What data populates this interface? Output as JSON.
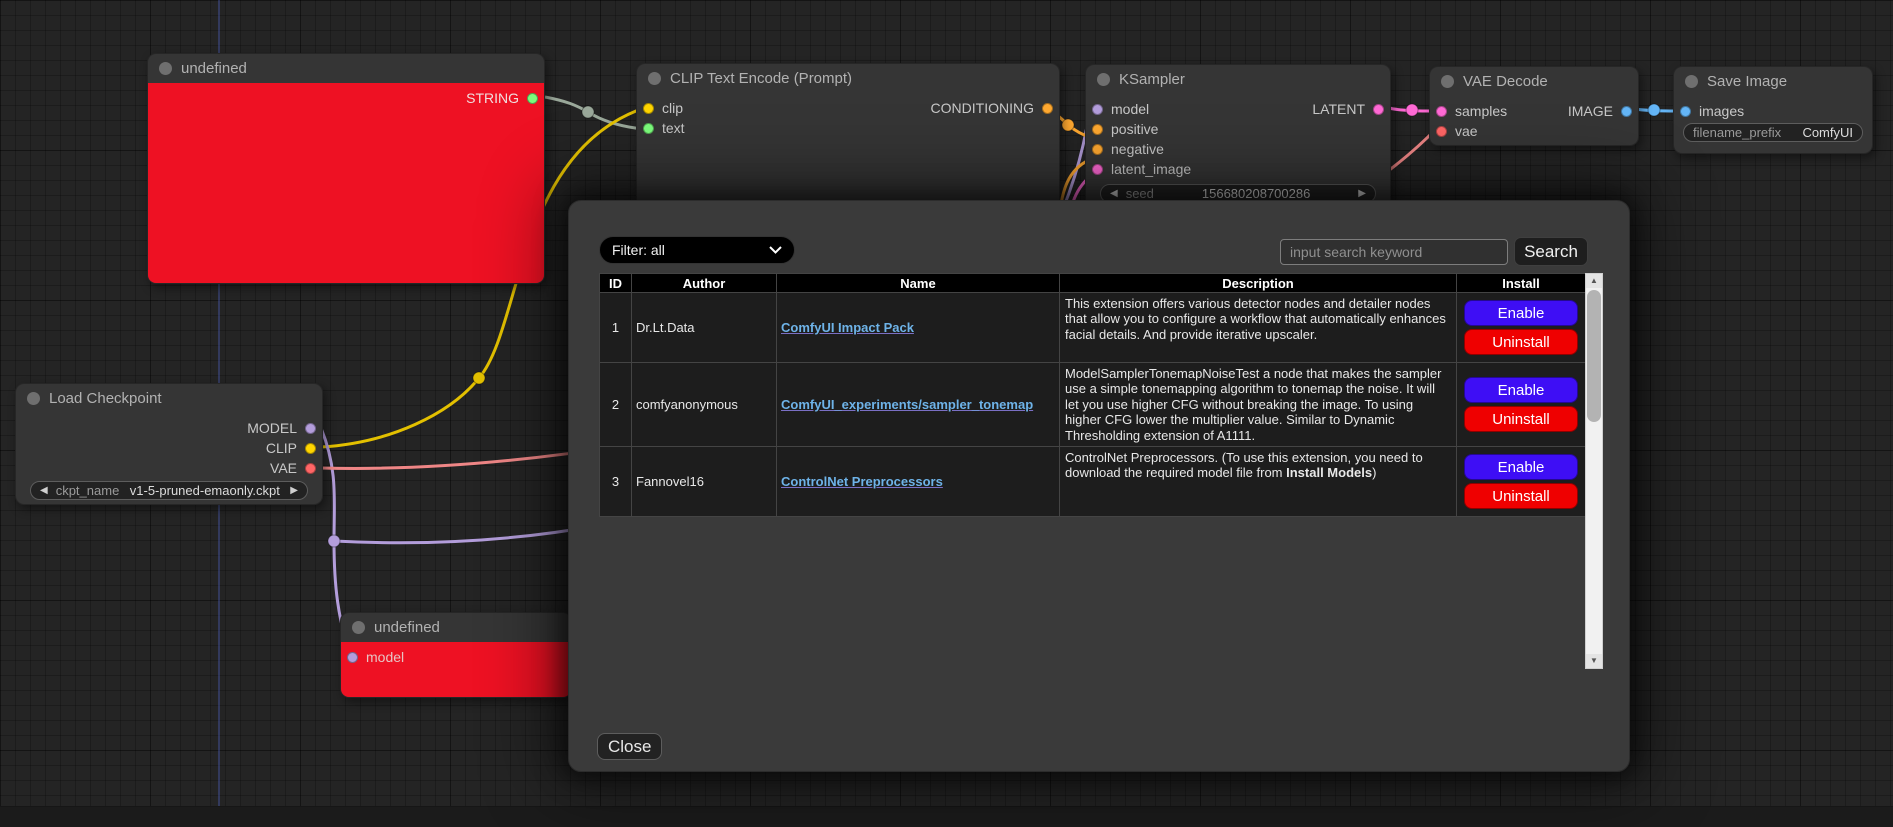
{
  "colors": {
    "error_node_red": "#ee1123",
    "enable_button": "#3e0ef5",
    "uninstall_button": "#ef0000",
    "extension_link": "#6eb3e8",
    "slot_string": "#7cfc7c",
    "slot_clip": "#ffd500",
    "slot_conditioning": "#ffa931",
    "slot_model": "#b39ddb",
    "slot_latent": "#ff6ad5",
    "slot_vae": "#ff6666",
    "slot_image": "#64b5f6"
  },
  "icons": {
    "scroll_up": "▲",
    "scroll_down": "▼",
    "widget_left": "◀",
    "widget_right": "▶"
  },
  "nodes": {
    "undefined_top": {
      "title": "undefined",
      "outputs": [
        {
          "name": "STRING",
          "color": "#7cfc7c"
        }
      ]
    },
    "clip_text_encode": {
      "title": "CLIP Text Encode (Prompt)",
      "inputs": [
        {
          "name": "clip",
          "color": "#ffd500"
        },
        {
          "name": "text",
          "color": "#7cfc7c"
        }
      ],
      "outputs": [
        {
          "name": "CONDITIONING",
          "color": "#ffa931"
        }
      ]
    },
    "ksampler": {
      "title": "KSampler",
      "inputs": [
        {
          "name": "model",
          "color": "#b39ddb"
        },
        {
          "name": "positive",
          "color": "#ffa931"
        },
        {
          "name": "negative",
          "color": "#ffa931"
        },
        {
          "name": "latent_image",
          "color": "#ff6ad5"
        }
      ],
      "outputs": [
        {
          "name": "LATENT",
          "color": "#ff6ad5"
        }
      ],
      "widgets": [
        {
          "label": "seed",
          "value": "156680208700286",
          "arrows": true
        }
      ]
    },
    "vae_decode": {
      "title": "VAE Decode",
      "inputs": [
        {
          "name": "samples",
          "color": "#ff6ad5"
        },
        {
          "name": "vae",
          "color": "#ff6666"
        }
      ],
      "outputs": [
        {
          "name": "IMAGE",
          "color": "#64b5f6"
        }
      ]
    },
    "save_image": {
      "title": "Save Image",
      "inputs": [
        {
          "name": "images",
          "color": "#64b5f6"
        }
      ],
      "widgets": [
        {
          "label": "filename_prefix",
          "value": "ComfyUI",
          "arrows": false
        }
      ]
    },
    "load_checkpoint": {
      "title": "Load Checkpoint",
      "outputs": [
        {
          "name": "MODEL",
          "color": "#b39ddb"
        },
        {
          "name": "CLIP",
          "color": "#ffd500"
        },
        {
          "name": "VAE",
          "color": "#ff6666"
        }
      ],
      "widgets": [
        {
          "label": "ckpt_name",
          "value": "v1-5-pruned-emaonly.ckpt",
          "arrows": true
        }
      ]
    },
    "undefined_bottom": {
      "title": "undefined",
      "inputs": [
        {
          "name": "model",
          "color": "#b39ddb"
        }
      ]
    }
  },
  "modal": {
    "filter_label": "Filter: all",
    "search_placeholder": "input search keyword",
    "search_button_label": "Search",
    "close_label": "Close",
    "table": {
      "headers": [
        "ID",
        "Author",
        "Name",
        "Description",
        "Install"
      ],
      "install": {
        "enable": "Enable",
        "uninstall": "Uninstall"
      },
      "rows": [
        {
          "id": "1",
          "author": "Dr.Lt.Data",
          "name": "ComfyUI Impact Pack",
          "description": [
            {
              "t": "This extension offers various detector nodes and detailer nodes that allow you to configure a workflow that automatically enhances facial details. And provide iterative upscaler.",
              "b": false
            }
          ]
        },
        {
          "id": "2",
          "author": "comfyanonymous",
          "name": "ComfyUI_experiments/sampler_tonemap",
          "description": [
            {
              "t": "ModelSamplerTonemapNoiseTest a node that makes the sampler use a simple tonemapping algorithm to tonemap the noise. It will let you use higher CFG without breaking the image. To using higher CFG lower the multiplier value. Similar to Dynamic Thresholding extension of A1111.",
              "b": false
            }
          ]
        },
        {
          "id": "3",
          "author": "Fannovel16",
          "name": "ControlNet Preprocessors",
          "description": [
            {
              "t": "ControlNet Preprocessors. (To use this extension, you need to download the required model file from ",
              "b": false
            },
            {
              "t": "Install Models",
              "b": true
            },
            {
              "t": ")",
              "b": false
            }
          ]
        }
      ]
    }
  }
}
